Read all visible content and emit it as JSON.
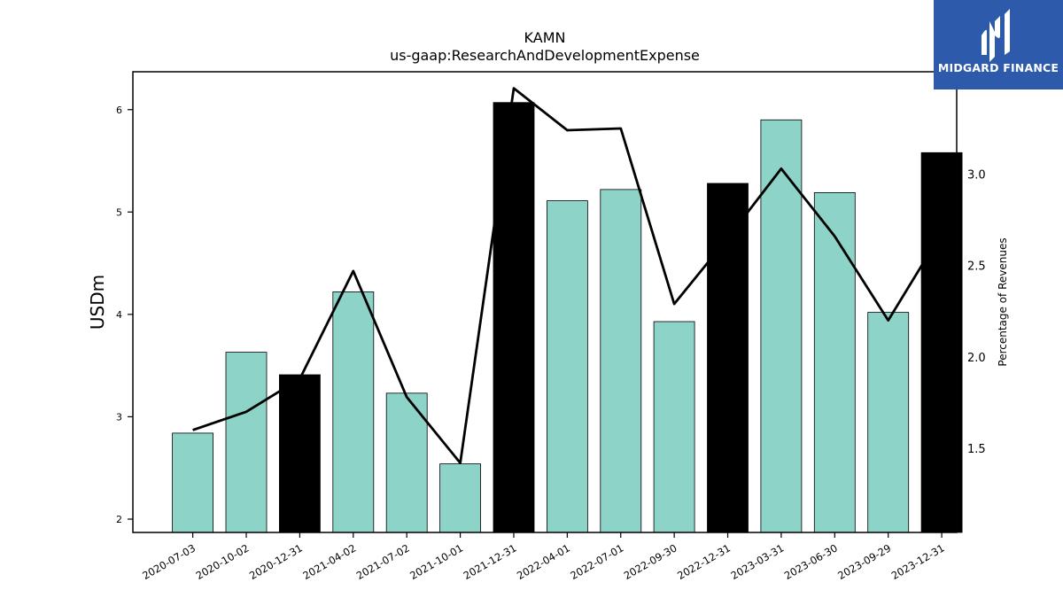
{
  "chart_data": {
    "type": "bar",
    "title": "KAMN",
    "subtitle": "us-gaap:ResearchAndDevelopmentExpense",
    "ylabel": "USDm",
    "y2label": "Percentage of Revenues",
    "categories": [
      "2020-07-03",
      "2020-10-02",
      "2020-12-31",
      "2021-04-02",
      "2021-07-02",
      "2021-10-01",
      "2021-12-31",
      "2022-04-01",
      "2022-07-01",
      "2022-09-30",
      "2022-12-31",
      "2023-03-31",
      "2023-06-30",
      "2023-09-29",
      "2023-12-31"
    ],
    "series": [
      {
        "type": "bar",
        "values": [
          2.84,
          3.63,
          3.41,
          4.22,
          3.23,
          2.54,
          6.07,
          5.11,
          5.22,
          3.93,
          5.28,
          5.9,
          5.19,
          4.02,
          5.58
        ],
        "fiscal_year_end": [
          false,
          false,
          true,
          false,
          false,
          false,
          true,
          false,
          false,
          false,
          true,
          false,
          false,
          false,
          true
        ],
        "color": "#8dd3c7",
        "highlight_color": "#000000"
      },
      {
        "type": "line",
        "axis": "right",
        "values": [
          1.6,
          1.7,
          1.88,
          2.47,
          1.78,
          1.42,
          3.47,
          3.24,
          3.25,
          2.29,
          2.65,
          3.03,
          2.66,
          2.2,
          2.68
        ],
        "color": "#000000"
      }
    ],
    "yticks": [
      2,
      3,
      4,
      5,
      6
    ],
    "y2ticks": [
      1.5,
      2.0,
      2.5,
      3.0
    ],
    "y2tick_labels": [
      "1.5",
      "2.0",
      "2.5",
      "3.0"
    ],
    "ylim": [
      1.87,
      6.37
    ],
    "y2lim": [
      1.04,
      3.56
    ],
    "grid": false,
    "legend": "none"
  },
  "logo": {
    "text": "MIDGARD FINANCE",
    "bg": "#2d5aab"
  }
}
